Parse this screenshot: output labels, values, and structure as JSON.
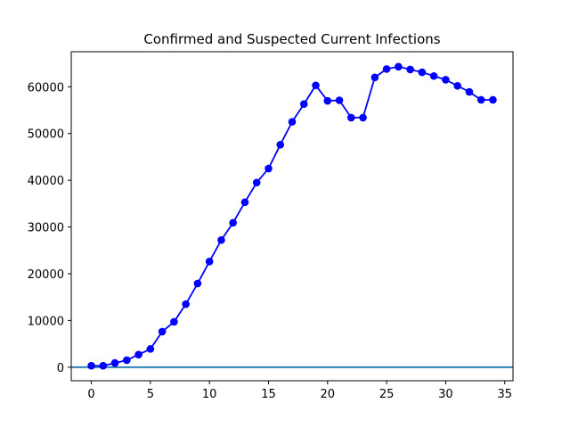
{
  "chart_data": {
    "type": "line",
    "title": "Confirmed and Suspected Current Infections",
    "xlabel": "",
    "ylabel": "",
    "xlim": [
      -1.7,
      35.7
    ],
    "ylim": [
      -2900,
      67500
    ],
    "x_ticks": [
      0,
      5,
      10,
      15,
      20,
      25,
      30,
      35
    ],
    "y_ticks": [
      0,
      10000,
      20000,
      30000,
      40000,
      50000,
      60000
    ],
    "grid": false,
    "legend": "none",
    "series": [
      {
        "color": "#0000ff",
        "marker": "circle",
        "x": [
          0,
          1,
          2,
          3,
          4,
          5,
          6,
          7,
          8,
          9,
          10,
          11,
          12,
          13,
          14,
          15,
          16,
          17,
          18,
          19,
          20,
          21,
          22,
          23,
          24,
          25,
          26,
          27,
          28,
          29,
          30,
          31,
          32,
          33,
          34
        ],
        "y": [
          300,
          300,
          900,
          1500,
          2700,
          3900,
          7600,
          9700,
          13500,
          17900,
          22600,
          27200,
          30900,
          35300,
          39500,
          42500,
          47600,
          52500,
          56300,
          60300,
          57000,
          57100,
          53400,
          53400,
          62000,
          63800,
          64300,
          63700,
          63100,
          62300,
          61500,
          60200,
          58900,
          57200,
          57200
        ]
      }
    ],
    "reference_lines": [
      {
        "axis": "y",
        "value": 0,
        "color": "#1f77b4"
      }
    ]
  }
}
